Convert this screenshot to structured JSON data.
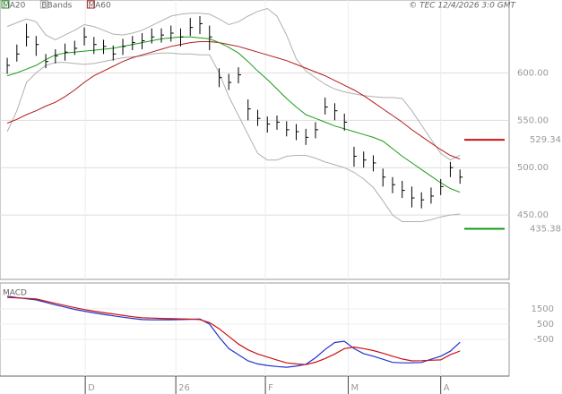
{
  "chart_data": [
    {
      "type": "ohlc",
      "legend": [
        {
          "name": "MA20",
          "color": "#1a9c1a"
        },
        {
          "name": "BBands",
          "color": "#b0b0b0"
        },
        {
          "name": "MA60",
          "color": "#b01c1c"
        }
      ],
      "copyright": "© TEC 12/4/2026 3:0 GMT",
      "xlim": [
        -0.75,
        52.1
      ],
      "xticks": [
        {
          "value": 8.1,
          "label": "D"
        },
        {
          "value": 17.5,
          "label": "26"
        },
        {
          "value": 26.8,
          "label": "F"
        },
        {
          "value": 35.4,
          "label": "M"
        },
        {
          "value": 45,
          "label": "A"
        }
      ],
      "ylim": [
        382,
        677
      ],
      "yticks": [
        {
          "value": 450,
          "label": "450.00"
        },
        {
          "value": 500,
          "label": "500.00"
        },
        {
          "value": 550,
          "label": "550.00"
        },
        {
          "value": 600,
          "label": "600.00"
        }
      ],
      "grid": true,
      "bar_color": "#000000",
      "high": [
        616,
        630,
        652,
        639,
        620,
        625,
        631,
        634,
        648,
        638,
        635,
        629,
        636,
        639,
        642,
        647,
        647,
        650,
        647,
        658,
        660,
        650,
        605,
        599,
        606,
        572,
        561,
        554,
        555,
        549,
        546,
        541,
        548,
        574,
        568,
        557,
        522,
        517,
        513,
        499,
        490,
        486,
        480,
        474,
        479,
        488,
        506,
        498
      ],
      "low": [
        599,
        612,
        628,
        618,
        605,
        610,
        613,
        619,
        629,
        620,
        620,
        613,
        619,
        624,
        625,
        631,
        632,
        633,
        628,
        639,
        641,
        624,
        585,
        582,
        589,
        550,
        544,
        537,
        540,
        533,
        529,
        524,
        531,
        556,
        550,
        539,
        501,
        500,
        496,
        480,
        473,
        468,
        458,
        457,
        462,
        471,
        490,
        483
      ],
      "close": [
        608,
        620,
        638,
        630,
        612,
        618,
        622,
        626,
        638,
        630,
        628,
        620,
        628,
        632,
        634,
        638,
        640,
        642,
        638,
        648,
        652,
        638,
        595,
        590,
        598,
        562,
        552,
        546,
        548,
        540,
        538,
        532,
        540,
        564,
        560,
        548,
        512,
        508,
        505,
        490,
        482,
        476,
        468,
        466,
        470,
        480,
        500,
        490
      ],
      "series": [
        {
          "name": "MA20",
          "color": "#1a9c1a",
          "values": [
            597,
            600,
            604,
            608,
            614,
            619,
            621,
            622,
            623,
            624,
            625,
            626,
            628,
            630,
            632,
            634,
            636,
            637,
            638,
            638,
            637,
            636,
            632,
            627,
            621,
            612,
            602,
            593,
            583,
            573,
            564,
            556,
            552,
            548,
            544,
            541,
            538,
            535,
            532,
            528,
            520,
            512,
            505,
            498,
            491,
            484,
            478,
            474
          ]
        },
        {
          "name": "MA60",
          "color": "#b01c1c",
          "values": [
            547,
            551,
            556,
            560,
            565,
            569,
            575,
            582,
            590,
            597,
            602,
            607,
            612,
            616,
            619,
            622,
            625,
            628,
            630,
            632,
            633,
            633,
            632,
            630,
            628,
            625,
            622,
            619,
            616,
            613,
            609,
            605,
            601,
            597,
            592,
            587,
            582,
            576,
            569,
            562,
            555,
            548,
            540,
            533,
            526,
            519,
            513,
            509
          ]
        },
        {
          "name": "BBands",
          "color": "#b0b0b0",
          "values": [
            649,
            653,
            657,
            654,
            640,
            635,
            640,
            645,
            651,
            649,
            645,
            641,
            640,
            642,
            645,
            650,
            655,
            660,
            662,
            663,
            663,
            662,
            657,
            651,
            654,
            660,
            665,
            668,
            660,
            640,
            615,
            602,
            595,
            588,
            583,
            580,
            578,
            576,
            575,
            574,
            574,
            573,
            560,
            545,
            530,
            515,
            508,
            513
          ]
        },
        {
          "name": "BBands",
          "color": "#b0b0b0",
          "values": [
            538,
            560,
            590,
            600,
            608,
            611,
            611,
            610,
            609,
            610,
            612,
            614,
            616,
            617,
            618,
            620,
            621,
            621,
            620,
            620,
            619,
            619,
            600,
            575,
            555,
            535,
            515,
            508,
            508,
            512,
            513,
            513,
            510,
            506,
            503,
            500,
            495,
            488,
            479,
            465,
            450,
            443,
            443,
            443,
            445,
            448,
            450,
            451
          ]
        }
      ],
      "levels": [
        {
          "value": 529.34,
          "color": "#cc1111"
        },
        {
          "value": 435.38,
          "color": "#11991a"
        }
      ]
    },
    {
      "type": "macd",
      "title": "MACD",
      "ylim": [
        -2900,
        3200
      ],
      "yticks": [
        -500,
        500,
        1500
      ],
      "series": [
        {
          "name": "MACD",
          "color": "#2233cc",
          "values": [
            2330,
            2240,
            2170,
            2090,
            1930,
            1770,
            1620,
            1470,
            1350,
            1240,
            1140,
            1050,
            960,
            880,
            800,
            790,
            790,
            790,
            800,
            820,
            840,
            500,
            -350,
            -1100,
            -1500,
            -1900,
            -2100,
            -2200,
            -2270,
            -2320,
            -2250,
            -2130,
            -1700,
            -1160,
            -700,
            -620,
            -1100,
            -1430,
            -1600,
            -1800,
            -2000,
            -2030,
            -2030,
            -2010,
            -1800,
            -1600,
            -1270,
            -680
          ]
        },
        {
          "name": "Signal",
          "color": "#cc1111",
          "values": [
            2250,
            2220,
            2190,
            2150,
            2010,
            1860,
            1720,
            1580,
            1460,
            1350,
            1260,
            1170,
            1080,
            990,
            920,
            900,
            880,
            860,
            850,
            830,
            800,
            600,
            200,
            -300,
            -800,
            -1180,
            -1450,
            -1650,
            -1850,
            -2030,
            -2100,
            -2150,
            -1990,
            -1750,
            -1450,
            -1100,
            -1000,
            -1100,
            -1230,
            -1400,
            -1600,
            -1780,
            -1900,
            -1890,
            -1860,
            -1840,
            -1500,
            -1260
          ]
        }
      ]
    }
  ]
}
